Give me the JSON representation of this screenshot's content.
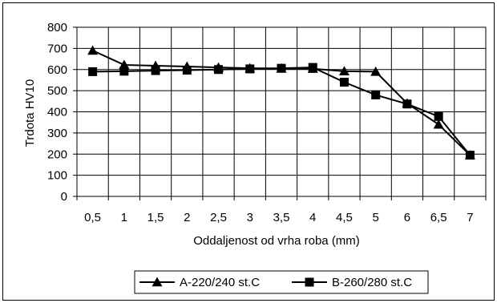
{
  "chart_data": {
    "type": "line",
    "title": "",
    "xlabel": "Oddaljenost od vrha roba (mm)",
    "ylabel": "Trdota HV10",
    "x": [
      "0,5",
      "1",
      "1,5",
      "2",
      "2,5",
      "3",
      "3,5",
      "4",
      "4,5",
      "5",
      "6",
      "6,5",
      "7"
    ],
    "ylim": [
      0,
      800
    ],
    "yticks": [
      0,
      100,
      200,
      300,
      400,
      500,
      600,
      700,
      800
    ],
    "grid": true,
    "legend_position": "bottom",
    "series": [
      {
        "name": "A-220/240 st.C",
        "marker": "triangle",
        "color": "#000000",
        "values": [
          690,
          622,
          618,
          614,
          610,
          606,
          605,
          604,
          592,
          590,
          440,
          340,
          195
        ]
      },
      {
        "name": "B-260/280 st.C",
        "marker": "square",
        "color": "#000000",
        "values": [
          590,
          592,
          595,
          597,
          600,
          603,
          606,
          610,
          540,
          480,
          437,
          378,
          195
        ]
      }
    ]
  }
}
